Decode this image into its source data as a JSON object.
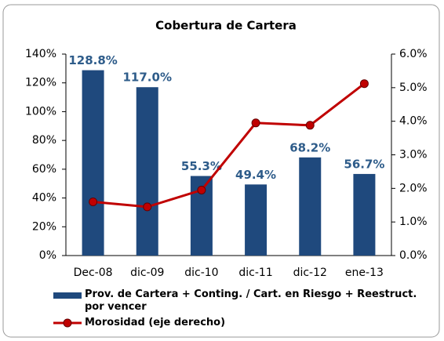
{
  "chart_data": {
    "type": "bar",
    "title": "Cobertura de Cartera",
    "categories": [
      "Dec-08",
      "dic-09",
      "dic-10",
      "dic-11",
      "dic-12",
      "ene-13"
    ],
    "series": [
      {
        "name": "Prov. de Cartera + Conting. / Cart. en Riesgo + Reestruct. por vencer",
        "color": "#1f497d",
        "type": "bar",
        "values": [
          128.8,
          117.0,
          55.3,
          49.4,
          68.2,
          56.7
        ],
        "value_labels": [
          "128.8%",
          "117.0%",
          "55.3%",
          "49.4%",
          "68.2%",
          "56.7%"
        ]
      },
      {
        "name": "Morosidad (eje derecho)",
        "color": "#c00000",
        "type": "line",
        "axis": "y2",
        "values": [
          1.6,
          1.45,
          1.95,
          3.95,
          3.88,
          5.12
        ]
      }
    ],
    "ylim": [
      0,
      140
    ],
    "yticks": [
      {
        "value": 0,
        "label": "0%"
      },
      {
        "value": 20,
        "label": "20%"
      },
      {
        "value": 40,
        "label": "40%"
      },
      {
        "value": 60,
        "label": "60%"
      },
      {
        "value": 80,
        "label": "80%"
      },
      {
        "value": 100,
        "label": "100%"
      },
      {
        "value": 120,
        "label": "120%"
      },
      {
        "value": 140,
        "label": "140%"
      }
    ],
    "y2lim": [
      0,
      6
    ],
    "y2ticks": [
      {
        "value": 0,
        "label": "0.0%"
      },
      {
        "value": 1,
        "label": "1.0%"
      },
      {
        "value": 2,
        "label": "2.0%"
      },
      {
        "value": 3,
        "label": "3.0%"
      },
      {
        "value": 4,
        "label": "4.0%"
      },
      {
        "value": 5,
        "label": "5.0%"
      },
      {
        "value": 6,
        "label": "6.0%"
      }
    ],
    "legend": "bottom"
  }
}
